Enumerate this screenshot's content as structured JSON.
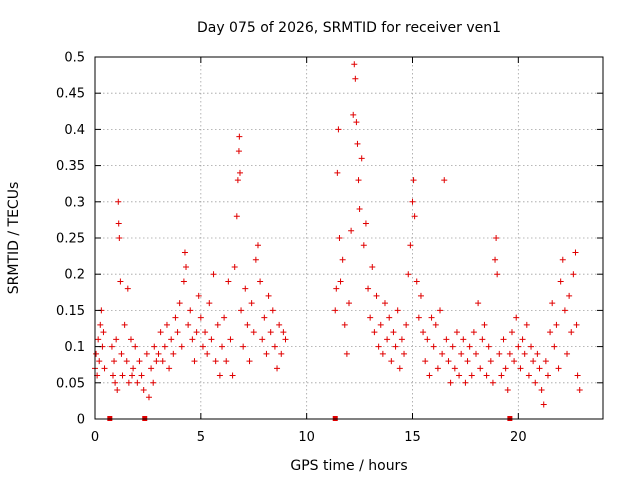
{
  "chart_data": {
    "type": "scatter",
    "title": "Day 075 of 2026, SRMTID for receiver ven1",
    "xlabel": "GPS time / hours",
    "ylabel": "SRMTID / TECUs",
    "xlim": [
      0,
      24
    ],
    "ylim": [
      0,
      0.5
    ],
    "xticks": [
      0,
      5,
      10,
      15,
      20
    ],
    "xtick_labels": [
      "0",
      "5",
      "10",
      "15",
      "20"
    ],
    "yticks": [
      0,
      0.05,
      0.1,
      0.15,
      0.2,
      0.25,
      0.3,
      0.35,
      0.4,
      0.45,
      0.5
    ],
    "ytick_labels": [
      "0",
      "0.05",
      "0.1",
      "0.15",
      "0.2",
      "0.25",
      "0.3",
      "0.35",
      "0.4",
      "0.45",
      "0.5"
    ],
    "grid": true,
    "marker_style": "plus",
    "color": "#e00000",
    "baseline_markers_x": [
      0.7,
      2.35,
      11.35,
      19.6
    ],
    "series": [
      {
        "name": "ven1",
        "points": [
          [
            0.0,
            0.07
          ],
          [
            0.05,
            0.09
          ],
          [
            0.1,
            0.06
          ],
          [
            0.15,
            0.11
          ],
          [
            0.2,
            0.08
          ],
          [
            0.25,
            0.13
          ],
          [
            0.3,
            0.15
          ],
          [
            0.35,
            0.1
          ],
          [
            0.4,
            0.12
          ],
          [
            0.45,
            0.07
          ],
          [
            0.8,
            0.1
          ],
          [
            0.85,
            0.06
          ],
          [
            0.9,
            0.08
          ],
          [
            0.95,
            0.05
          ],
          [
            1.0,
            0.11
          ],
          [
            1.05,
            0.04
          ],
          [
            1.1,
            0.3
          ],
          [
            1.12,
            0.27
          ],
          [
            1.15,
            0.25
          ],
          [
            1.2,
            0.19
          ],
          [
            1.25,
            0.09
          ],
          [
            1.3,
            0.06
          ],
          [
            1.4,
            0.13
          ],
          [
            1.5,
            0.08
          ],
          [
            1.55,
            0.18
          ],
          [
            1.6,
            0.05
          ],
          [
            1.7,
            0.11
          ],
          [
            1.75,
            0.06
          ],
          [
            1.8,
            0.07
          ],
          [
            1.9,
            0.1
          ],
          [
            2.0,
            0.05
          ],
          [
            2.1,
            0.08
          ],
          [
            2.2,
            0.06
          ],
          [
            2.3,
            0.04
          ],
          [
            2.45,
            0.09
          ],
          [
            2.55,
            0.03
          ],
          [
            2.65,
            0.07
          ],
          [
            2.75,
            0.05
          ],
          [
            2.8,
            0.1
          ],
          [
            2.9,
            0.08
          ],
          [
            3.0,
            0.09
          ],
          [
            3.1,
            0.12
          ],
          [
            3.2,
            0.08
          ],
          [
            3.3,
            0.1
          ],
          [
            3.4,
            0.13
          ],
          [
            3.5,
            0.07
          ],
          [
            3.6,
            0.11
          ],
          [
            3.7,
            0.09
          ],
          [
            3.8,
            0.14
          ],
          [
            3.9,
            0.12
          ],
          [
            4.0,
            0.16
          ],
          [
            4.1,
            0.1
          ],
          [
            4.2,
            0.19
          ],
          [
            4.25,
            0.23
          ],
          [
            4.3,
            0.21
          ],
          [
            4.4,
            0.13
          ],
          [
            4.5,
            0.15
          ],
          [
            4.6,
            0.11
          ],
          [
            4.7,
            0.08
          ],
          [
            4.8,
            0.12
          ],
          [
            4.9,
            0.17
          ],
          [
            5.0,
            0.14
          ],
          [
            5.1,
            0.1
          ],
          [
            5.2,
            0.12
          ],
          [
            5.3,
            0.09
          ],
          [
            5.4,
            0.16
          ],
          [
            5.5,
            0.11
          ],
          [
            5.6,
            0.2
          ],
          [
            5.7,
            0.08
          ],
          [
            5.8,
            0.13
          ],
          [
            5.9,
            0.06
          ],
          [
            6.0,
            0.1
          ],
          [
            6.1,
            0.14
          ],
          [
            6.2,
            0.08
          ],
          [
            6.3,
            0.19
          ],
          [
            6.4,
            0.11
          ],
          [
            6.5,
            0.06
          ],
          [
            6.6,
            0.21
          ],
          [
            6.7,
            0.28
          ],
          [
            6.75,
            0.33
          ],
          [
            6.8,
            0.37
          ],
          [
            6.82,
            0.39
          ],
          [
            6.85,
            0.34
          ],
          [
            6.9,
            0.15
          ],
          [
            7.0,
            0.1
          ],
          [
            7.1,
            0.18
          ],
          [
            7.2,
            0.13
          ],
          [
            7.3,
            0.08
          ],
          [
            7.4,
            0.16
          ],
          [
            7.5,
            0.12
          ],
          [
            7.6,
            0.22
          ],
          [
            7.7,
            0.24
          ],
          [
            7.8,
            0.19
          ],
          [
            7.9,
            0.11
          ],
          [
            8.0,
            0.14
          ],
          [
            8.1,
            0.09
          ],
          [
            8.2,
            0.17
          ],
          [
            8.3,
            0.12
          ],
          [
            8.4,
            0.15
          ],
          [
            8.5,
            0.1
          ],
          [
            8.6,
            0.07
          ],
          [
            8.7,
            0.13
          ],
          [
            8.8,
            0.09
          ],
          [
            8.9,
            0.12
          ],
          [
            9.0,
            0.11
          ],
          [
            11.35,
            0.15
          ],
          [
            11.4,
            0.18
          ],
          [
            11.45,
            0.34
          ],
          [
            11.5,
            0.4
          ],
          [
            11.55,
            0.25
          ],
          [
            11.6,
            0.19
          ],
          [
            11.7,
            0.22
          ],
          [
            11.8,
            0.13
          ],
          [
            11.9,
            0.09
          ],
          [
            12.0,
            0.16
          ],
          [
            12.1,
            0.26
          ],
          [
            12.2,
            0.42
          ],
          [
            12.25,
            0.49
          ],
          [
            12.3,
            0.47
          ],
          [
            12.35,
            0.41
          ],
          [
            12.4,
            0.38
          ],
          [
            12.45,
            0.33
          ],
          [
            12.5,
            0.29
          ],
          [
            12.6,
            0.36
          ],
          [
            12.7,
            0.24
          ],
          [
            12.8,
            0.27
          ],
          [
            12.9,
            0.18
          ],
          [
            13.0,
            0.14
          ],
          [
            13.1,
            0.21
          ],
          [
            13.2,
            0.12
          ],
          [
            13.3,
            0.17
          ],
          [
            13.4,
            0.1
          ],
          [
            13.5,
            0.13
          ],
          [
            13.6,
            0.09
          ],
          [
            13.7,
            0.16
          ],
          [
            13.8,
            0.11
          ],
          [
            13.9,
            0.14
          ],
          [
            14.0,
            0.08
          ],
          [
            14.1,
            0.12
          ],
          [
            14.2,
            0.1
          ],
          [
            14.3,
            0.15
          ],
          [
            14.4,
            0.07
          ],
          [
            14.5,
            0.11
          ],
          [
            14.6,
            0.09
          ],
          [
            14.7,
            0.13
          ],
          [
            14.8,
            0.2
          ],
          [
            14.9,
            0.24
          ],
          [
            15.0,
            0.3
          ],
          [
            15.05,
            0.33
          ],
          [
            15.1,
            0.28
          ],
          [
            15.2,
            0.19
          ],
          [
            15.3,
            0.14
          ],
          [
            15.4,
            0.17
          ],
          [
            15.5,
            0.12
          ],
          [
            15.6,
            0.08
          ],
          [
            15.7,
            0.11
          ],
          [
            15.8,
            0.06
          ],
          [
            15.9,
            0.14
          ],
          [
            16.0,
            0.1
          ],
          [
            16.1,
            0.13
          ],
          [
            16.2,
            0.07
          ],
          [
            16.3,
            0.15
          ],
          [
            16.4,
            0.09
          ],
          [
            16.5,
            0.33
          ],
          [
            16.6,
            0.11
          ],
          [
            16.7,
            0.08
          ],
          [
            16.8,
            0.05
          ],
          [
            16.9,
            0.1
          ],
          [
            17.0,
            0.07
          ],
          [
            17.1,
            0.12
          ],
          [
            17.2,
            0.06
          ],
          [
            17.3,
            0.09
          ],
          [
            17.4,
            0.11
          ],
          [
            17.5,
            0.05
          ],
          [
            17.6,
            0.08
          ],
          [
            17.7,
            0.1
          ],
          [
            17.8,
            0.06
          ],
          [
            17.9,
            0.12
          ],
          [
            18.0,
            0.09
          ],
          [
            18.1,
            0.16
          ],
          [
            18.2,
            0.07
          ],
          [
            18.3,
            0.11
          ],
          [
            18.4,
            0.13
          ],
          [
            18.5,
            0.06
          ],
          [
            18.6,
            0.1
          ],
          [
            18.7,
            0.08
          ],
          [
            18.8,
            0.05
          ],
          [
            18.9,
            0.22
          ],
          [
            18.95,
            0.25
          ],
          [
            19.0,
            0.2
          ],
          [
            19.1,
            0.09
          ],
          [
            19.2,
            0.06
          ],
          [
            19.3,
            0.11
          ],
          [
            19.4,
            0.07
          ],
          [
            19.5,
            0.04
          ],
          [
            19.6,
            0.09
          ],
          [
            19.7,
            0.12
          ],
          [
            19.8,
            0.08
          ],
          [
            19.9,
            0.14
          ],
          [
            20.0,
            0.1
          ],
          [
            20.1,
            0.07
          ],
          [
            20.2,
            0.11
          ],
          [
            20.3,
            0.09
          ],
          [
            20.4,
            0.13
          ],
          [
            20.5,
            0.06
          ],
          [
            20.6,
            0.1
          ],
          [
            20.7,
            0.08
          ],
          [
            20.8,
            0.05
          ],
          [
            20.9,
            0.09
          ],
          [
            21.0,
            0.07
          ],
          [
            21.1,
            0.04
          ],
          [
            21.2,
            0.02
          ],
          [
            21.3,
            0.08
          ],
          [
            21.4,
            0.06
          ],
          [
            21.5,
            0.12
          ],
          [
            21.6,
            0.16
          ],
          [
            21.7,
            0.1
          ],
          [
            21.8,
            0.13
          ],
          [
            21.9,
            0.07
          ],
          [
            22.0,
            0.19
          ],
          [
            22.1,
            0.22
          ],
          [
            22.2,
            0.15
          ],
          [
            22.3,
            0.09
          ],
          [
            22.4,
            0.17
          ],
          [
            22.5,
            0.12
          ],
          [
            22.6,
            0.2
          ],
          [
            22.7,
            0.23
          ],
          [
            22.75,
            0.13
          ],
          [
            22.8,
            0.06
          ],
          [
            22.9,
            0.04
          ]
        ]
      }
    ]
  }
}
